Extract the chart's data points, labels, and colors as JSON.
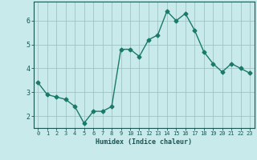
{
  "x": [
    0,
    1,
    2,
    3,
    4,
    5,
    6,
    7,
    8,
    9,
    10,
    11,
    12,
    13,
    14,
    15,
    16,
    17,
    18,
    19,
    20,
    21,
    22,
    23
  ],
  "y": [
    3.4,
    2.9,
    2.8,
    2.7,
    2.4,
    1.7,
    2.2,
    2.2,
    2.4,
    4.8,
    4.8,
    4.5,
    5.2,
    5.4,
    6.4,
    6.0,
    6.3,
    5.6,
    4.7,
    4.2,
    3.85,
    4.2,
    4.0,
    3.8
  ],
  "line_color": "#1a7a6a",
  "bg_color": "#c8eaea",
  "grid_color": "#a0c4c4",
  "xlabel": "Humidex (Indice chaleur)",
  "xlabel_color": "#1a5555",
  "tick_color": "#1a5555",
  "ylim": [
    1.5,
    6.8
  ],
  "xlim": [
    -0.5,
    23.5
  ],
  "yticks": [
    2,
    3,
    4,
    5,
    6
  ],
  "xticks": [
    0,
    1,
    2,
    3,
    4,
    5,
    6,
    7,
    8,
    9,
    10,
    11,
    12,
    13,
    14,
    15,
    16,
    17,
    18,
    19,
    20,
    21,
    22,
    23
  ],
  "marker": "D",
  "marker_size": 2.5,
  "line_width": 1.0
}
